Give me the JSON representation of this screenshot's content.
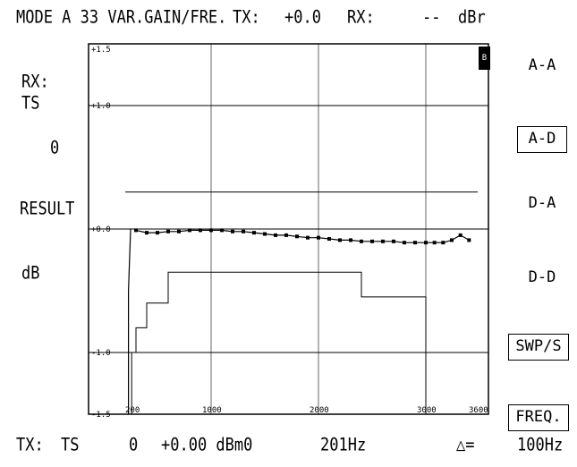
{
  "header": {
    "mode": "MODE A 33 VAR.GAIN/FRE.",
    "tx_label": "TX:",
    "tx_value": "+0.0",
    "rx_label": "RX:",
    "rx_value": "--",
    "unit": "dBr"
  },
  "left_panel": {
    "rx_label": "RX:",
    "ts_label": "TS",
    "ts_value": "0",
    "result_label": "RESULT",
    "unit_label": "dB"
  },
  "softkeys": [
    {
      "label": "A-A",
      "boxed": false
    },
    {
      "label": "A-D",
      "boxed": true
    },
    {
      "label": "D-A",
      "boxed": false
    },
    {
      "label": "D-D",
      "boxed": false
    },
    {
      "label": "SWP/S",
      "boxed": true
    },
    {
      "label": "FREQ.",
      "boxed": true
    }
  ],
  "footer": {
    "tx_label": "TX:",
    "ts_label": "TS",
    "ts_value": "0",
    "level": "+0.00 dBm0",
    "freq": "201Hz",
    "delta_symbol": "△=",
    "delta_value": "100Hz"
  },
  "corner_mark": "B",
  "chart_data": {
    "type": "line",
    "x_tick_labels": [
      "200",
      "1000",
      "2000",
      "3000",
      "3600"
    ],
    "x_ticks": [
      200,
      1000,
      2000,
      3000,
      3600
    ],
    "xlim": [
      200,
      3600
    ],
    "y_tick_labels": [
      "+1.5",
      "+1.0",
      "+0.0",
      "-1.0",
      "-1.5"
    ],
    "y_ticks": [
      1.5,
      1.0,
      0.0,
      -1.0,
      -1.5
    ],
    "ylim": [
      -1.5,
      1.5
    ],
    "grid": true,
    "series": [
      {
        "style": "markers",
        "x": [
          300,
          400,
          500,
          600,
          700,
          800,
          900,
          1000,
          1100,
          1200,
          1300,
          1400,
          1500,
          1600,
          1700,
          1800,
          1900,
          2000,
          2100,
          2200,
          2300,
          2400,
          2500,
          2600,
          2700,
          2800,
          2900,
          3000,
          3100,
          3200,
          3300,
          3400,
          3500
        ],
        "y": [
          -0.01,
          -0.03,
          -0.03,
          -0.02,
          -0.02,
          -0.01,
          -0.01,
          -0.01,
          -0.01,
          -0.02,
          -0.02,
          -0.03,
          -0.04,
          -0.05,
          -0.05,
          -0.06,
          -0.07,
          -0.07,
          -0.08,
          -0.09,
          -0.09,
          -0.1,
          -0.1,
          -0.1,
          -0.1,
          -0.11,
          -0.11,
          -0.11,
          -0.11,
          -0.11,
          -0.09,
          -0.05,
          -0.09
        ]
      }
    ],
    "mask_upper": {
      "x": [
        200,
        3600
      ],
      "y": [
        0.3,
        0.3
      ]
    },
    "mask_lower": {
      "x": [
        260,
        260,
        300,
        300,
        400,
        400,
        600,
        600,
        2400,
        2400,
        3000,
        3000,
        3600
      ],
      "y": [
        -1.5,
        -1.0,
        -1.0,
        -0.8,
        -0.8,
        -0.6,
        -0.6,
        -0.35,
        -0.35,
        -0.55,
        -0.55,
        -1.5,
        -1.5
      ]
    },
    "sweep_start": {
      "x": [
        230,
        230,
        250,
        250
      ],
      "y": [
        -1.5,
        -0.5,
        0.0,
        0.0
      ]
    }
  }
}
